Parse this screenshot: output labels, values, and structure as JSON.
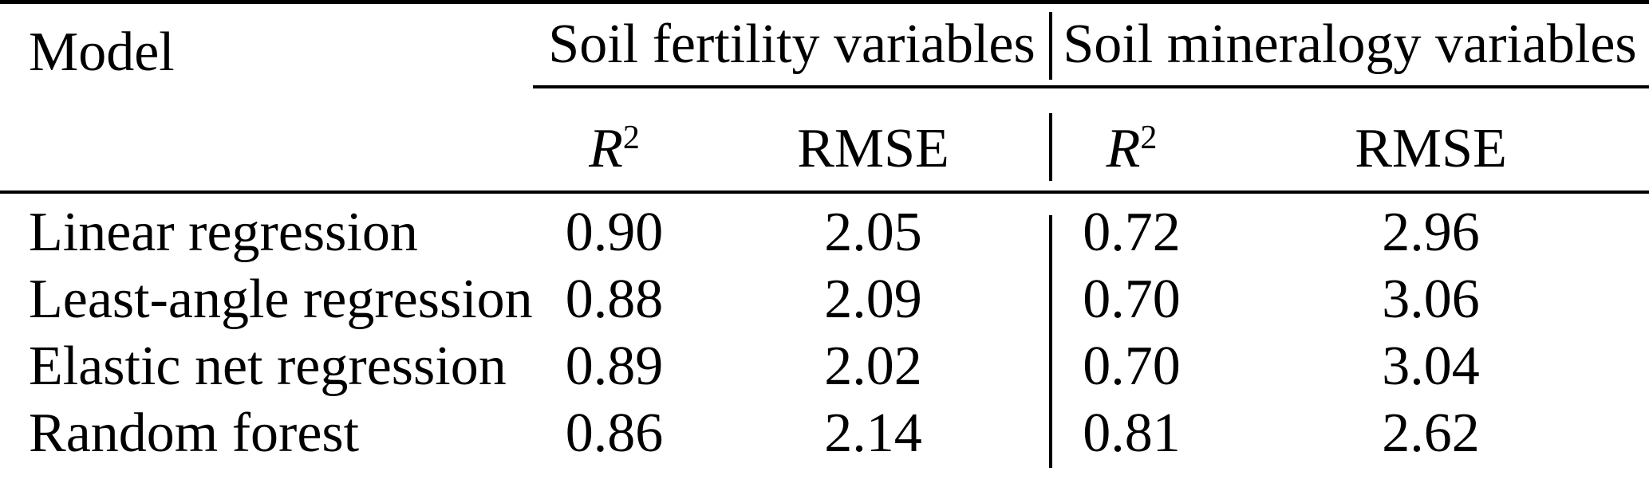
{
  "page": {
    "background": "#ffffff",
    "text_color": "#000000",
    "rule_color": "#000000"
  },
  "table": {
    "model_header": "Model",
    "groups": [
      {
        "label": "Soil fertility variables"
      },
      {
        "label": "Soil mineralogy variables"
      }
    ],
    "subheader": {
      "r_base": "R",
      "r_sup": "2",
      "rmse": "RMSE"
    },
    "rows": [
      {
        "model": "Linear regression",
        "fertility_r2": "0.90",
        "fertility_rmse": "2.05",
        "mineralogy_r2": "0.72",
        "mineralogy_rmse": "2.96"
      },
      {
        "model": "Least-angle regression",
        "fertility_r2": "0.88",
        "fertility_rmse": "2.09",
        "mineralogy_r2": "0.70",
        "mineralogy_rmse": "3.06"
      },
      {
        "model": "Elastic net regression",
        "fertility_r2": "0.89",
        "fertility_rmse": "2.02",
        "mineralogy_r2": "0.70",
        "mineralogy_rmse": "3.04"
      },
      {
        "model": "Random forest",
        "fertility_r2": "0.86",
        "fertility_rmse": "2.14",
        "mineralogy_r2": "0.81",
        "mineralogy_rmse": "2.62"
      }
    ]
  },
  "chart_data": {
    "type": "table",
    "title": "",
    "columns": [
      "Model",
      "Soil fertility R2",
      "Soil fertility RMSE",
      "Soil mineralogy R2",
      "Soil mineralogy RMSE"
    ],
    "rows": [
      [
        "Linear regression",
        0.9,
        2.05,
        0.72,
        2.96
      ],
      [
        "Least-angle regression",
        0.88,
        2.09,
        0.7,
        3.06
      ],
      [
        "Elastic net regression",
        0.89,
        2.02,
        0.7,
        3.04
      ],
      [
        "Random forest",
        0.86,
        2.14,
        0.81,
        2.62
      ]
    ]
  }
}
